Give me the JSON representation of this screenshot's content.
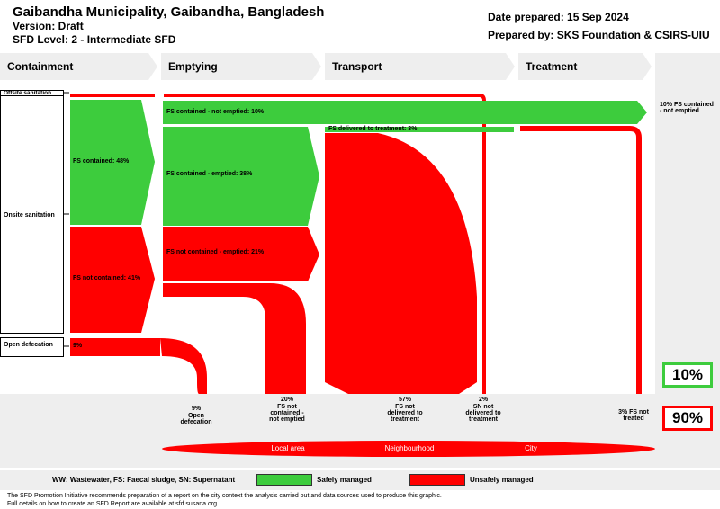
{
  "header": {
    "title": "Gaibandha Municipality, Gaibandha, Bangladesh",
    "version": "Version: Draft",
    "sfd_level": "SFD Level: 2 - Intermediate SFD",
    "date_prepared": "Date prepared: 15 Sep 2024",
    "prepared_by": "Prepared by: SKS Foundation & CSIRS-UIU"
  },
  "columns": [
    "Containment",
    "Emptying",
    "Transport",
    "Treatment"
  ],
  "rows": {
    "offsite": "Offsite sanitation",
    "onsite": "Onsite sanitation",
    "open_defecation": "Open defecation"
  },
  "flows": {
    "fs_contained": "FS contained: 48%",
    "fs_not_contained": "FS not contained: 41%",
    "od_pct": "9%",
    "fs_contained_not_emptied": "FS contained - not emptied: 10%",
    "fs_contained_emptied": "FS contained - emptied: 38%",
    "fs_not_contained_emptied": "FS not contained - emptied: 21%",
    "fs_delivered": "FS delivered to treatment: 3%",
    "right_label": "10% FS contained - not emptied"
  },
  "outcomes": [
    {
      "pct": "9%",
      "label": "Open defecation"
    },
    {
      "pct": "20%",
      "label": "FS not contained - not emptied"
    },
    {
      "pct": "57%",
      "label": "FS not delivered to treatment"
    },
    {
      "pct": "2%",
      "label": "SN not delivered to treatment"
    },
    {
      "pct": "3% FS not treated",
      "label": ""
    }
  ],
  "totals": {
    "safe": "10%",
    "unsafe": "90%"
  },
  "areas": {
    "local": "Local area",
    "neighbourhood": "Neighbourhood",
    "city": "City"
  },
  "legend": {
    "abbrev": "WW: Wastewater, FS: Faecal sludge, SN: Supernatant",
    "safe": "Safely managed",
    "unsafe": "Unsafely managed"
  },
  "footer": {
    "line1": "The SFD Promotion Initiative recommends preparation of a report on the city context the analysis carried out and data sources used to produce this graphic.",
    "line2": "Full details on how to create an SFD Report are available at sfd.susana.org"
  },
  "colors": {
    "safe": "#3dcc3d",
    "unsafe": "#ff0000",
    "panel": "#eeeeee"
  }
}
